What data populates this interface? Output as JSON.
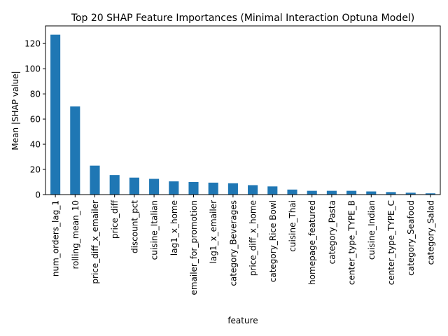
{
  "chart_data": {
    "type": "bar",
    "title": "Top 20 SHAP Feature Importances (Minimal Interaction Optuna Model)",
    "xlabel": "feature",
    "ylabel": "Mean |SHAP value|",
    "ylim": [
      0,
      134
    ],
    "yticks": [
      0,
      20,
      40,
      60,
      80,
      100,
      120
    ],
    "grid": false,
    "legend": "none",
    "bar_color": "#1f77b4",
    "categories": [
      "num_orders_lag_1",
      "rolling_mean_10",
      "price_diff_x_emailer",
      "price_diff",
      "discount_pct",
      "cuisine_Italian",
      "lag1_x_home",
      "emailer_for_promotion",
      "lag1_x_emailer",
      "category_Beverages",
      "price_diff_x_home",
      "category_Rice Bowl",
      "cuisine_Thai",
      "homepage_featured",
      "category_Pasta",
      "center_type_TYPE_B",
      "cuisine_Indian",
      "center_type_TYPE_C",
      "category_Seafood",
      "category_Salad"
    ],
    "values": [
      127,
      70,
      23,
      15.5,
      13.5,
      12.5,
      10.5,
      10,
      9.5,
      9,
      7.5,
      6.5,
      4,
      3,
      3,
      3,
      2.5,
      2,
      1.5,
      1
    ]
  }
}
